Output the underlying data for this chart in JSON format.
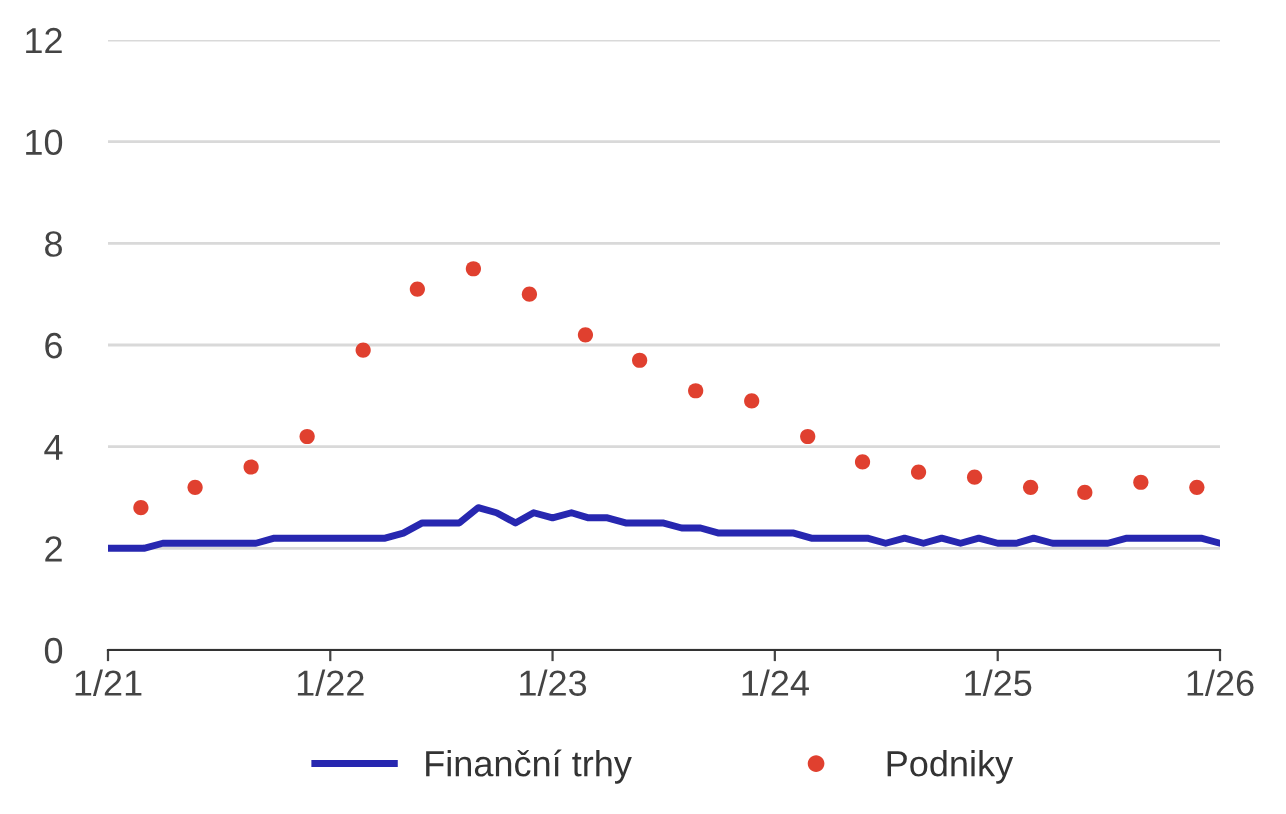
{
  "chart_data": {
    "type": "line",
    "ylim": [
      0,
      12
    ],
    "yticks": [
      0,
      2,
      4,
      6,
      8,
      10,
      12
    ],
    "xlim": [
      "2021-01-01",
      "2026-01-01"
    ],
    "xticks": [
      {
        "value": "2021-01-01",
        "label": "1/21"
      },
      {
        "value": "2022-01-01",
        "label": "1/22"
      },
      {
        "value": "2023-01-01",
        "label": "1/23"
      },
      {
        "value": "2024-01-01",
        "label": "1/24"
      },
      {
        "value": "2025-01-01",
        "label": "1/25"
      },
      {
        "value": "2026-01-01",
        "label": "1/26"
      }
    ],
    "grid": "y",
    "legend": "bottom",
    "series": [
      {
        "name": "Finanční trhy",
        "color": "#2727b0",
        "marker": "none",
        "x": [
          "2021-01",
          "2021-02",
          "2021-03",
          "2021-04",
          "2021-05",
          "2021-06",
          "2021-07",
          "2021-08",
          "2021-09",
          "2021-10",
          "2021-11",
          "2021-12",
          "2022-01",
          "2022-02",
          "2022-03",
          "2022-04",
          "2022-05",
          "2022-06",
          "2022-07",
          "2022-08",
          "2022-09",
          "2022-10",
          "2022-11",
          "2022-12",
          "2023-01",
          "2023-02",
          "2023-03",
          "2023-04",
          "2023-05",
          "2023-06",
          "2023-07",
          "2023-08",
          "2023-09",
          "2023-10",
          "2023-11",
          "2023-12",
          "2024-01",
          "2024-02",
          "2024-03",
          "2024-04",
          "2024-05",
          "2024-06",
          "2024-07",
          "2024-08",
          "2024-09",
          "2024-10",
          "2024-11",
          "2024-12",
          "2025-01",
          "2025-02",
          "2025-03",
          "2025-04",
          "2025-05",
          "2025-06",
          "2025-07",
          "2025-08",
          "2025-09",
          "2025-10",
          "2025-11",
          "2025-12",
          "2026-01"
        ],
        "values": [
          2.0,
          2.0,
          2.0,
          2.1,
          2.1,
          2.1,
          2.1,
          2.1,
          2.1,
          2.2,
          2.2,
          2.2,
          2.2,
          2.2,
          2.2,
          2.2,
          2.3,
          2.5,
          2.5,
          2.5,
          2.8,
          2.7,
          2.5,
          2.7,
          2.6,
          2.7,
          2.6,
          2.6,
          2.5,
          2.5,
          2.5,
          2.4,
          2.4,
          2.3,
          2.3,
          2.3,
          2.3,
          2.3,
          2.2,
          2.2,
          2.2,
          2.2,
          2.1,
          2.2,
          2.1,
          2.2,
          2.1,
          2.2,
          2.1,
          2.1,
          2.2,
          2.1,
          2.1,
          2.1,
          2.1,
          2.2,
          2.2,
          2.2,
          2.2,
          2.2,
          2.1
        ]
      },
      {
        "name": "Podniky",
        "type": "scatter",
        "color": "#e0402f",
        "marker": "circle",
        "x": [
          "2021-02-24",
          "2021-05-24",
          "2021-08-24",
          "2021-11-24",
          "2022-02-24",
          "2022-05-24",
          "2022-08-24",
          "2022-11-24",
          "2023-02-24",
          "2023-05-24",
          "2023-08-24",
          "2023-11-24",
          "2024-02-24",
          "2024-05-24",
          "2024-08-24",
          "2024-11-24",
          "2025-02-24",
          "2025-05-24",
          "2025-08-24",
          "2025-11-24"
        ],
        "values": [
          2.8,
          3.2,
          3.6,
          4.2,
          5.9,
          7.1,
          7.5,
          7.0,
          6.2,
          5.7,
          5.1,
          4.9,
          4.2,
          3.7,
          3.5,
          3.4,
          3.2,
          3.1,
          3.3,
          3.2
        ]
      }
    ]
  }
}
